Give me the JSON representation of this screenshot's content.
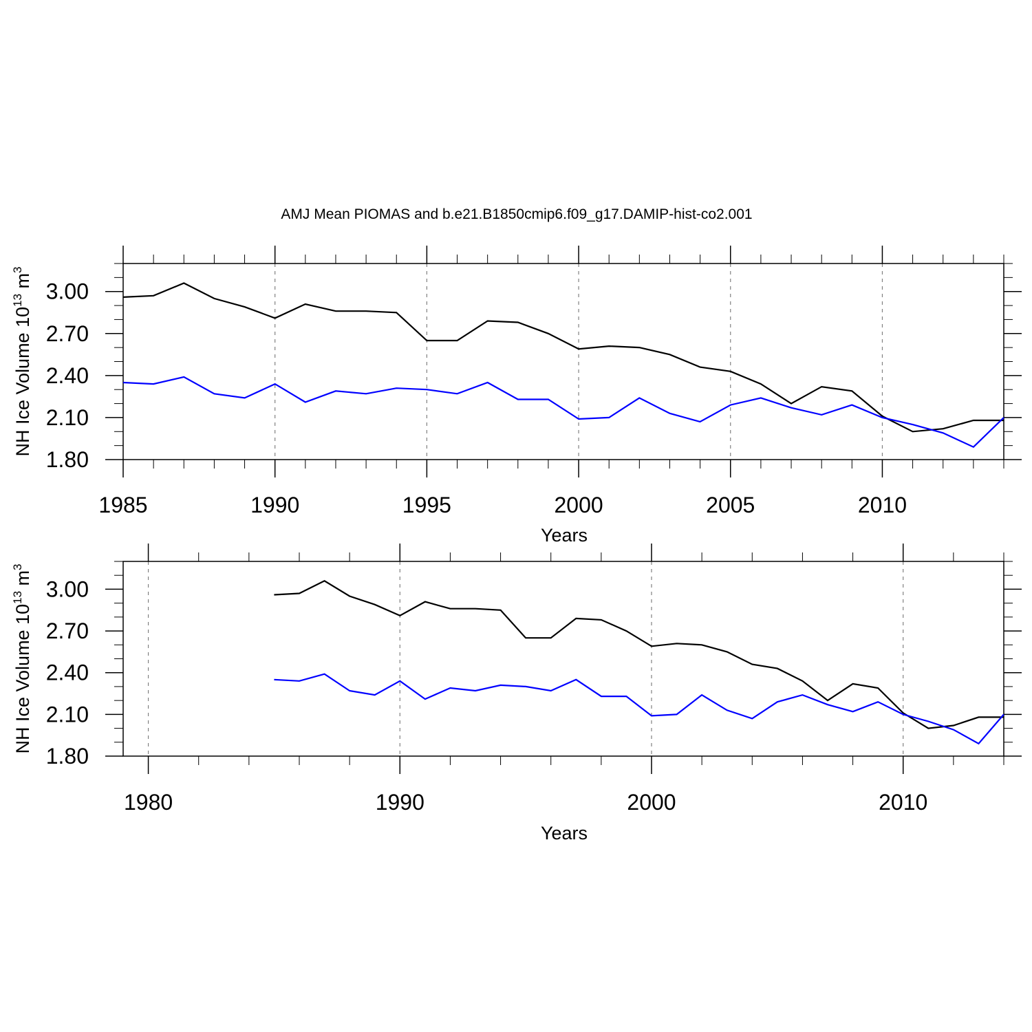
{
  "title": "AMJ Mean PIOMAS and b.e21.B1850cmip6.f09_g17.DAMIP-hist-co2.001",
  "colors": {
    "observed": "#000000",
    "model": "#0000ff",
    "grid": "#808080"
  },
  "chart_data": [
    {
      "type": "line",
      "title": "AMJ Mean PIOMAS and b.e21.B1850cmip6.f09_g17.DAMIP-hist-co2.001",
      "xlabel": "Years",
      "ylabel": {
        "base": "NH Ice Volume 10",
        "exponent": "13",
        "unit": " m",
        "unit_exponent": "3"
      },
      "xlim": [
        1985,
        2014
      ],
      "ylim": [
        1.8,
        3.2
      ],
      "xticks_major": [
        1985,
        1990,
        1995,
        2000,
        2005,
        2010
      ],
      "xtick_labels": [
        "1985",
        "1990",
        "1995",
        "2000",
        "2005",
        "2010"
      ],
      "xticks_minor_step": 1,
      "yticks_major": [
        1.8,
        2.1,
        2.4,
        2.7,
        3.0
      ],
      "ytick_labels": [
        "1.80",
        "2.10",
        "2.40",
        "2.70",
        "3.00"
      ],
      "yticks_minor_step": 0.1,
      "grid": "x-major dashed",
      "series": [
        {
          "color": "#000000",
          "x": [
            1985,
            1986,
            1987,
            1988,
            1989,
            1990,
            1991,
            1992,
            1993,
            1994,
            1995,
            1996,
            1997,
            1998,
            1999,
            2000,
            2001,
            2002,
            2003,
            2004,
            2005,
            2006,
            2007,
            2008,
            2009,
            2010,
            2011,
            2012,
            2013,
            2014
          ],
          "y": [
            2.96,
            2.97,
            3.06,
            2.95,
            2.89,
            2.81,
            2.91,
            2.86,
            2.86,
            2.85,
            2.65,
            2.65,
            2.79,
            2.78,
            2.7,
            2.59,
            2.61,
            2.6,
            2.55,
            2.46,
            2.43,
            2.34,
            2.2,
            2.32,
            2.29,
            2.11,
            2.0,
            2.02,
            2.08,
            2.08
          ]
        },
        {
          "color": "#0000ff",
          "x": [
            1985,
            1986,
            1987,
            1988,
            1989,
            1990,
            1991,
            1992,
            1993,
            1994,
            1995,
            1996,
            1997,
            1998,
            1999,
            2000,
            2001,
            2002,
            2003,
            2004,
            2005,
            2006,
            2007,
            2008,
            2009,
            2010,
            2011,
            2012,
            2013,
            2014
          ],
          "y": [
            2.35,
            2.34,
            2.39,
            2.27,
            2.24,
            2.34,
            2.21,
            2.29,
            2.27,
            2.31,
            2.3,
            2.27,
            2.35,
            2.23,
            2.23,
            2.09,
            2.1,
            2.24,
            2.13,
            2.07,
            2.19,
            2.24,
            2.17,
            2.12,
            2.19,
            2.1,
            2.05,
            1.99,
            1.89,
            2.1
          ]
        }
      ]
    },
    {
      "type": "line",
      "xlabel": "Years",
      "ylabel": {
        "base": "NH Ice Volume 10",
        "exponent": "13",
        "unit": " m",
        "unit_exponent": "3"
      },
      "xlim": [
        1979,
        2014
      ],
      "ylim": [
        1.8,
        3.2
      ],
      "xticks_major": [
        1980,
        1990,
        2000,
        2010
      ],
      "xtick_labels": [
        "1980",
        "1990",
        "2000",
        "2010"
      ],
      "xticks_minor_step": 2,
      "yticks_major": [
        1.8,
        2.1,
        2.4,
        2.7,
        3.0
      ],
      "ytick_labels": [
        "1.80",
        "2.10",
        "2.40",
        "2.70",
        "3.00"
      ],
      "yticks_minor_step": 0.1,
      "grid": "x-major dashed",
      "series": [
        {
          "color": "#000000",
          "x": [
            1985,
            1986,
            1987,
            1988,
            1989,
            1990,
            1991,
            1992,
            1993,
            1994,
            1995,
            1996,
            1997,
            1998,
            1999,
            2000,
            2001,
            2002,
            2003,
            2004,
            2005,
            2006,
            2007,
            2008,
            2009,
            2010,
            2011,
            2012,
            2013,
            2014
          ],
          "y": [
            2.96,
            2.97,
            3.06,
            2.95,
            2.89,
            2.81,
            2.91,
            2.86,
            2.86,
            2.85,
            2.65,
            2.65,
            2.79,
            2.78,
            2.7,
            2.59,
            2.61,
            2.6,
            2.55,
            2.46,
            2.43,
            2.34,
            2.2,
            2.32,
            2.29,
            2.11,
            2.0,
            2.02,
            2.08,
            2.08
          ]
        },
        {
          "color": "#0000ff",
          "x": [
            1985,
            1986,
            1987,
            1988,
            1989,
            1990,
            1991,
            1992,
            1993,
            1994,
            1995,
            1996,
            1997,
            1998,
            1999,
            2000,
            2001,
            2002,
            2003,
            2004,
            2005,
            2006,
            2007,
            2008,
            2009,
            2010,
            2011,
            2012,
            2013,
            2014
          ],
          "y": [
            2.35,
            2.34,
            2.39,
            2.27,
            2.24,
            2.34,
            2.21,
            2.29,
            2.27,
            2.31,
            2.3,
            2.27,
            2.35,
            2.23,
            2.23,
            2.09,
            2.1,
            2.24,
            2.13,
            2.07,
            2.19,
            2.24,
            2.17,
            2.12,
            2.19,
            2.1,
            2.05,
            1.99,
            1.89,
            2.1
          ]
        }
      ]
    }
  ]
}
